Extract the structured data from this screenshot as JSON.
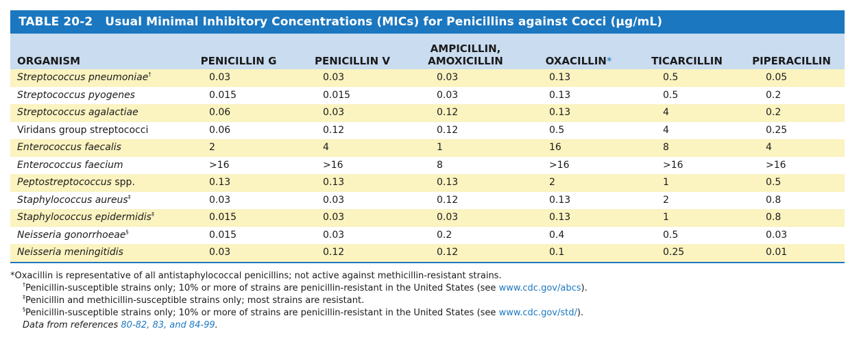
{
  "title": {
    "number": "TABLE 20-2",
    "text": "Usual Minimal Inhibitory Concentrations (MICs) for Penicillins against Cocci (µg/mL)"
  },
  "columns": [
    {
      "line1": "ORGANISM",
      "line2": ""
    },
    {
      "line1": "PENICILLIN G",
      "line2": ""
    },
    {
      "line1": "PENICILLIN V",
      "line2": ""
    },
    {
      "line1": "AMPICILLIN,",
      "line2": "AMOXICILLIN"
    },
    {
      "line1": "OXACILLIN",
      "line2": "",
      "mark": "*"
    },
    {
      "line1": "TICARCILLIN",
      "line2": ""
    },
    {
      "line1": "PIPERACILLIN",
      "line2": ""
    }
  ],
  "rows": [
    {
      "genus": "Streptococcus pneumoniae",
      "plain": "",
      "sup": "†",
      "values": [
        "0.03",
        "0.03",
        "0.03",
        "0.13",
        "0.5",
        "0.05"
      ]
    },
    {
      "genus": "Streptococcus pyogenes",
      "plain": "",
      "sup": "",
      "values": [
        "0.015",
        "0.015",
        "0.03",
        "0.13",
        "0.5",
        "0.2"
      ]
    },
    {
      "genus": "Streptococcus agalactiae",
      "plain": "",
      "sup": "",
      "values": [
        "0.06",
        "0.03",
        "0.12",
        "0.13",
        "4",
        "0.2"
      ]
    },
    {
      "genus": "",
      "plain": "Viridans group streptococci",
      "sup": "",
      "values": [
        "0.06",
        "0.12",
        "0.12",
        "0.5",
        "4",
        "0.25"
      ]
    },
    {
      "genus": "Enterococcus faecalis",
      "plain": "",
      "sup": "",
      "values": [
        "2",
        "4",
        "1",
        "16",
        "8",
        "4"
      ]
    },
    {
      "genus": "Enterococcus faecium",
      "plain": "",
      "sup": "",
      "values": [
        ">16",
        ">16",
        "8",
        ">16",
        ">16",
        ">16"
      ]
    },
    {
      "genus": "Peptostreptococcus",
      "plain": " spp.",
      "sup": "",
      "values": [
        "0.13",
        "0.13",
        "0.13",
        "2",
        "1",
        "0.5"
      ]
    },
    {
      "genus": "Staphylococcus aureus",
      "plain": "",
      "sup": "‡",
      "values": [
        "0.03",
        "0.03",
        "0.12",
        "0.13",
        "2",
        "0.8"
      ]
    },
    {
      "genus": "Staphylococcus epidermidis",
      "plain": "",
      "sup": "‡",
      "values": [
        "0.015",
        "0.03",
        "0.03",
        "0.13",
        "1",
        "0.8"
      ]
    },
    {
      "genus": "Neisseria gonorrhoeae",
      "plain": "",
      "sup": "§",
      "values": [
        "0.015",
        "0.03",
        "0.2",
        "0.4",
        "0.5",
        "0.03"
      ]
    },
    {
      "genus": "Neisseria meningitidis",
      "plain": "",
      "sup": "",
      "values": [
        "0.03",
        "0.12",
        "0.12",
        "0.1",
        "0.25",
        "0.01"
      ]
    }
  ],
  "footnotes": {
    "star": {
      "mark": "*",
      "text": "Oxacillin is representative of all antistaphylococcal penicillins; not active against methicillin-resistant strains."
    },
    "dagger": {
      "mark": "†",
      "text": "Penicillin-susceptible strains only; 10% or more of strains are penicillin-resistant in the United States (see ",
      "link": "www.cdc.gov/abcs",
      "end": ")."
    },
    "ddagger": {
      "mark": "‡",
      "text": "Penicillin and methicillin-susceptible strains only; most strains are resistant."
    },
    "section": {
      "mark": "§",
      "text": "Penicillin-susceptible strains only; 10% or more of strains are penicillin-resistant in the United States (see ",
      "link": "www.cdc.gov/std/",
      "end": ")."
    },
    "source": {
      "text": "Data from references ",
      "refs": "80-82, 83, and 84-99",
      "end": "."
    }
  },
  "colors": {
    "title_bg": "#1b77c0",
    "header_bg": "#c9dcf0",
    "stripe": "#fbf3c0",
    "link": "#1b77c0"
  }
}
